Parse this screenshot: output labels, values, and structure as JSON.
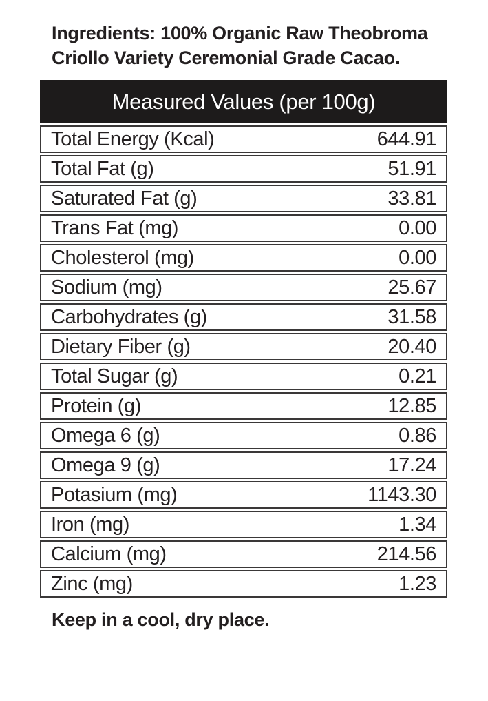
{
  "page": {
    "ingredients_label": "Ingredients:",
    "ingredients_text": " 100% Organic Raw Theobroma Criollo Variety Ceremonial Grade Cacao.",
    "storage_note": "Keep in a cool, dry place."
  },
  "table": {
    "title": "Measured Values (per 100g)",
    "rows": [
      {
        "label": "Total Energy (Kcal)",
        "value": "644.91"
      },
      {
        "label": "Total Fat (g)",
        "value": "51.91"
      },
      {
        "label": "Saturated Fat (g)",
        "value": "33.81"
      },
      {
        "label": "Trans Fat (mg)",
        "value": "0.00"
      },
      {
        "label": "Cholesterol (mg)",
        "value": "0.00"
      },
      {
        "label": "Sodium (mg)",
        "value": "25.67"
      },
      {
        "label": "Carbohydrates (g)",
        "value": "31.58"
      },
      {
        "label": "Dietary Fiber (g)",
        "value": "20.40"
      },
      {
        "label": "Total Sugar (g)",
        "value": "0.21"
      },
      {
        "label": "Protein (g)",
        "value": "12.85"
      },
      {
        "label": "Omega 6 (g)",
        "value": "0.86"
      },
      {
        "label": "Omega 9 (g)",
        "value": "17.24"
      },
      {
        "label": "Potasium (mg)",
        "value": "1143.30"
      },
      {
        "label": "Iron (mg)",
        "value": "1.34"
      },
      {
        "label": "Calcium (mg)",
        "value": "214.56"
      },
      {
        "label": "Zinc (mg)",
        "value": "1.23"
      }
    ]
  },
  "colors": {
    "header_bg": "#1d1b1b",
    "header_text": "#ffffff",
    "body_text": "#231f20",
    "row_border": "#3a3838",
    "background": "#ffffff"
  }
}
